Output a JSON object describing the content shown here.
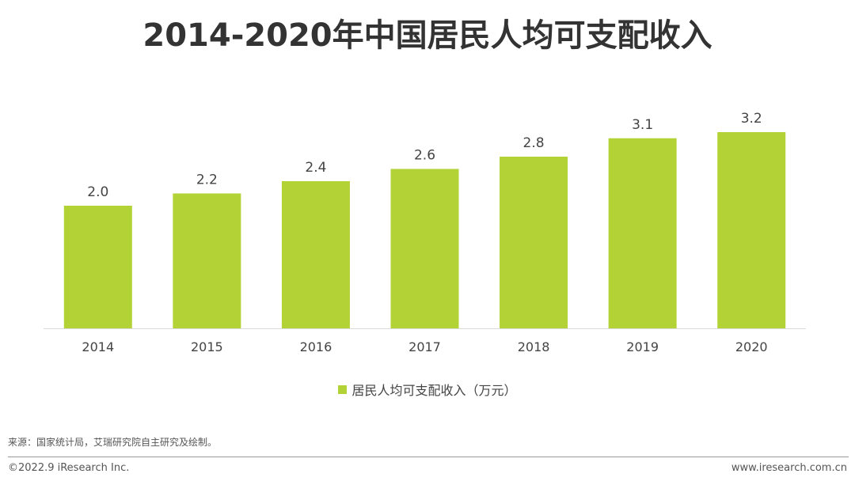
{
  "title": "2014-2020年中国居民人均可支配收入",
  "chart_data": {
    "type": "bar",
    "title": "2014-2020年中国居民人均可支配收入",
    "categories": [
      "2014",
      "2015",
      "2016",
      "2017",
      "2018",
      "2019",
      "2020"
    ],
    "series": [
      {
        "name": "居民人均可支配收入（万元）",
        "values": [
          2.0,
          2.2,
          2.4,
          2.6,
          2.8,
          3.1,
          3.2
        ],
        "labels": [
          "2.0",
          "2.2",
          "2.4",
          "2.6",
          "2.8",
          "3.1",
          "3.2"
        ]
      }
    ],
    "xlabel": "",
    "ylabel": "",
    "ylim": [
      0,
      3.2
    ],
    "grid": false,
    "legend_position": "bottom",
    "bar_color": "#b2d235"
  },
  "legend": {
    "label": "居民人均可支配收入（万元）"
  },
  "footer": {
    "source": "来源：国家统计局，艾瑞研究院自主研究及绘制。",
    "copyright": "©2022.9 iResearch Inc.",
    "website": "www.iresearch.com.cn"
  }
}
